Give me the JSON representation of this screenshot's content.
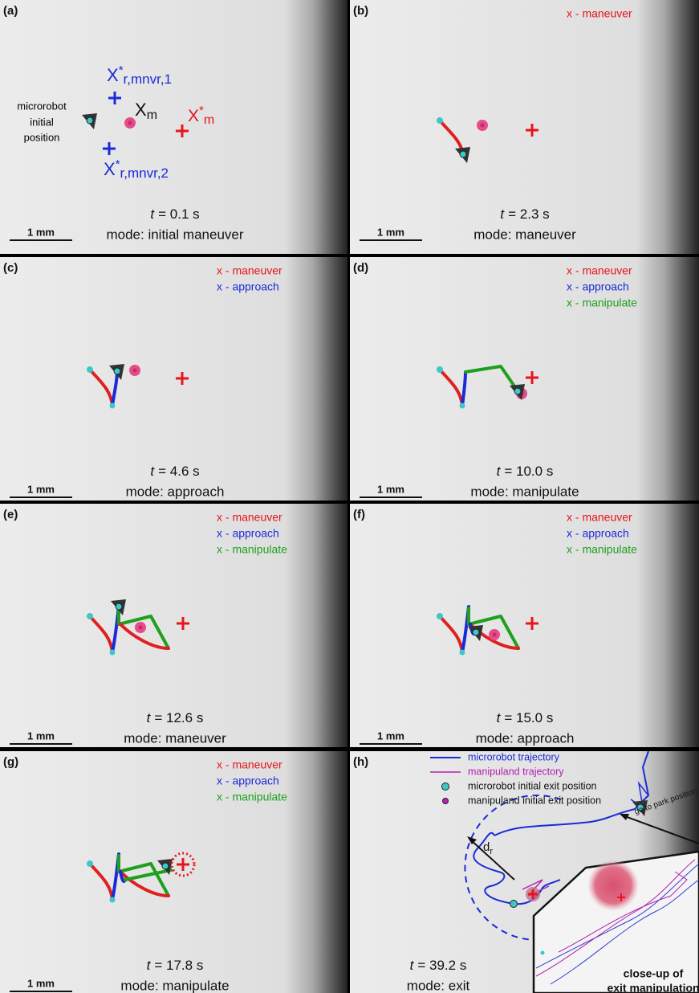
{
  "panels": [
    {
      "label": "(a)",
      "legend": [],
      "time_symbol": "t",
      "time": "= 0.1 s",
      "mode": "mode: initial maneuver",
      "scale_bar": "1 mm",
      "annotations": [
        {
          "lines": [
            "microrobot",
            "initial",
            "position"
          ]
        },
        {
          "main": "X",
          "sup": "*",
          "sub": "r,mnvr,1"
        },
        {
          "main": "X",
          "sub": "m"
        },
        {
          "main": "X",
          "sup": "*",
          "sub": "m"
        },
        {
          "main": "X",
          "sup": "*",
          "sub": "r,mnvr,2"
        }
      ]
    },
    {
      "label": "(b)",
      "legend": [
        {
          "text": "x - maneuver",
          "color": "#e8141b"
        }
      ],
      "time_symbol": "t",
      "time": "= 2.3 s",
      "mode": "mode: maneuver",
      "scale_bar": "1 mm"
    },
    {
      "label": "(c)",
      "legend": [
        {
          "text": "x - maneuver",
          "color": "#e8141b"
        },
        {
          "text": "x - approach",
          "color": "#1a2bd8"
        }
      ],
      "time_symbol": "t",
      "time": "= 4.6 s",
      "mode": "mode: approach",
      "scale_bar": "1 mm"
    },
    {
      "label": "(d)",
      "legend": [
        {
          "text": "x - maneuver",
          "color": "#e8141b"
        },
        {
          "text": "x - approach",
          "color": "#1a2bd8"
        },
        {
          "text": "x - manipulate",
          "color": "#1ea01e"
        }
      ],
      "time_symbol": "t",
      "time": "= 10.0 s",
      "mode": "mode: manipulate",
      "scale_bar": "1 mm"
    },
    {
      "label": "(e)",
      "legend": [
        {
          "text": "x - maneuver",
          "color": "#e8141b"
        },
        {
          "text": "x - approach",
          "color": "#1a2bd8"
        },
        {
          "text": "x - manipulate",
          "color": "#1ea01e"
        }
      ],
      "time_symbol": "t",
      "time": "= 12.6 s",
      "mode": "mode: maneuver",
      "scale_bar": "1 mm"
    },
    {
      "label": "(f)",
      "legend": [
        {
          "text": "x - maneuver",
          "color": "#e8141b"
        },
        {
          "text": "x - approach",
          "color": "#1a2bd8"
        },
        {
          "text": "x - manipulate",
          "color": "#1ea01e"
        }
      ],
      "time_symbol": "t",
      "time": "= 15.0 s",
      "mode": "mode: approach",
      "scale_bar": "1 mm"
    },
    {
      "label": "(g)",
      "legend": [
        {
          "text": "x - maneuver",
          "color": "#e8141b"
        },
        {
          "text": "x - approach",
          "color": "#1a2bd8"
        },
        {
          "text": "x - manipulate",
          "color": "#1ea01e"
        }
      ],
      "time_symbol": "t",
      "time": "= 17.8 s",
      "mode": "mode: manipulate",
      "scale_bar": "1 mm"
    },
    {
      "label": "(h)",
      "legend": [],
      "time_symbol": "t",
      "time": "= 39.2 s",
      "mode": "mode: exit",
      "key": [
        "microrobot trajectory",
        "manipuland trajectory",
        "microrobot initial exit position",
        "manipuland initial exit position"
      ],
      "annotations": [
        {
          "main": "d",
          "sub": "r"
        },
        {
          "text": "go to park position"
        },
        {
          "lines": [
            "close-up of",
            "exit manipulation"
          ]
        }
      ]
    }
  ]
}
